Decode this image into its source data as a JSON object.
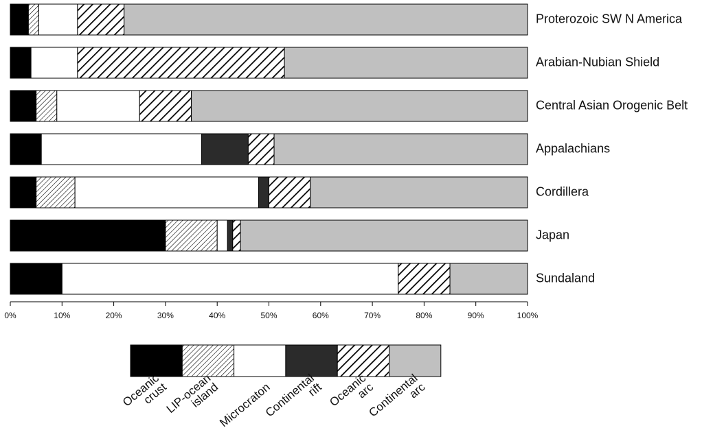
{
  "chart_data": {
    "type": "stacked-bar-horizontal",
    "categories": [
      "Proterozoic SW N America",
      "Arabian-Nubian Shield",
      "Central Asian Orogenic Belt",
      "Appalachians",
      "Cordillera",
      "Japan",
      "Sundaland"
    ],
    "series": [
      {
        "name": "Oceanic crust",
        "color": "#000000",
        "values": [
          3.5,
          4,
          5,
          6,
          5,
          30,
          10
        ]
      },
      {
        "name": "LIP-ocean island",
        "color": "#000000",
        "pattern": "fine-diagonal",
        "values": [
          2,
          0,
          4,
          0,
          7.5,
          10,
          0
        ]
      },
      {
        "name": "Microcraton",
        "color": "#ffffff",
        "values": [
          7.5,
          9,
          16,
          31,
          35.5,
          2,
          65
        ]
      },
      {
        "name": "Continental rift",
        "color": "#2b2b2b",
        "values": [
          0,
          0,
          0,
          9,
          2,
          1,
          0
        ]
      },
      {
        "name": "Oceanic arc",
        "color": "#000000",
        "pattern": "wide-diagonal",
        "values": [
          9,
          40,
          10,
          5,
          8,
          1.5,
          10
        ]
      },
      {
        "name": "Continental arc",
        "color": "#c0c0c0",
        "values": [
          78,
          47,
          65,
          49,
          42,
          55.5,
          15
        ]
      }
    ],
    "xlim": [
      0,
      100
    ],
    "xticks": [
      {
        "value": 0,
        "label": "0%"
      },
      {
        "value": 10,
        "label": "10%"
      },
      {
        "value": 20,
        "label": "20%"
      },
      {
        "value": 30,
        "label": "30%"
      },
      {
        "value": 40,
        "label": "40%"
      },
      {
        "value": 50,
        "label": "50%"
      },
      {
        "value": 60,
        "label": "60%"
      },
      {
        "value": 70,
        "label": "70%"
      },
      {
        "value": 80,
        "label": "80%"
      },
      {
        "value": 90,
        "label": "90%"
      },
      {
        "value": 100,
        "label": "100%"
      }
    ],
    "legend": "bottom"
  }
}
